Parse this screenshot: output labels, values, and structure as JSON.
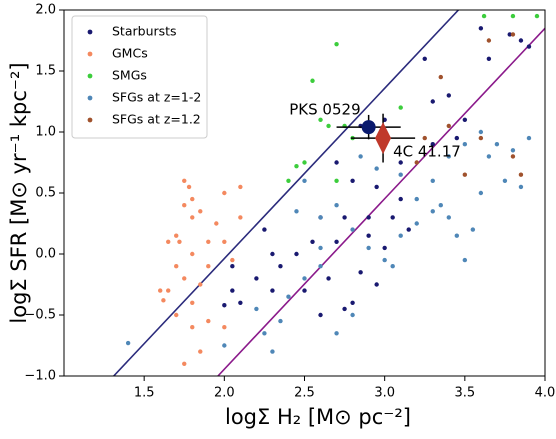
{
  "chart_data": {
    "type": "scatter",
    "xlabel": "logΣ H₂ [M⊙ pc⁻²]",
    "ylabel": "logΣ SFR [M⊙ yr⁻¹ kpc⁻²]",
    "xlim": [
      1.0,
      4.0
    ],
    "ylim": [
      -1.0,
      2.0
    ],
    "xticks": [
      {
        "value": 1.5,
        "label": "1.5"
      },
      {
        "value": 2.0,
        "label": "2.0"
      },
      {
        "value": 2.5,
        "label": "2.5"
      },
      {
        "value": 3.0,
        "label": "3.0"
      },
      {
        "value": 3.5,
        "label": "3.5"
      },
      {
        "value": 4.0,
        "label": "4.0"
      }
    ],
    "yticks": [
      {
        "value": -1.0,
        "label": "−1.0"
      },
      {
        "value": -0.5,
        "label": "−0.5"
      },
      {
        "value": 0.0,
        "label": "0.0"
      },
      {
        "value": 0.5,
        "label": "0.5"
      },
      {
        "value": 1.0,
        "label": "1.0"
      },
      {
        "value": 1.5,
        "label": "1.5"
      },
      {
        "value": 2.0,
        "label": "2.0"
      }
    ],
    "legend": "upper left",
    "series": [
      {
        "name": "Starbursts",
        "color": "#191970",
        "x": [
          3.6,
          3.85,
          3.78,
          3.9,
          3.65,
          3.4,
          3.25,
          3.3,
          3.0,
          2.85,
          3.5,
          3.45,
          3.3,
          3.1,
          2.6,
          2.75,
          2.9,
          3.05,
          3.15,
          2.9,
          2.7,
          2.55,
          2.45,
          2.35,
          2.2,
          2.05,
          2.1,
          2.3,
          2.5,
          2.6,
          2.75,
          2.8,
          2.95,
          2.85,
          3.0,
          2.05,
          2.25,
          2.3,
          2.65,
          3.1,
          2.7,
          2.8,
          2.0,
          2.95
        ],
        "values": [
          1.85,
          1.75,
          1.8,
          1.7,
          1.6,
          1.3,
          1.6,
          1.25,
          1.1,
          1.05,
          1.1,
          0.95,
          0.9,
          0.75,
          0.3,
          0.3,
          0.3,
          0.3,
          0.2,
          0.15,
          0.1,
          0.1,
          0.0,
          -0.1,
          -0.2,
          -0.3,
          -0.4,
          -0.3,
          -0.3,
          -0.5,
          -0.45,
          -0.4,
          -0.25,
          -0.15,
          0.05,
          -0.1,
          0.2,
          0.0,
          -0.2,
          0.45,
          0.75,
          0.6,
          -0.42,
          0.55
        ]
      },
      {
        "name": "GMCs",
        "color": "#f4895f",
        "x": [
          1.75,
          1.78,
          1.8,
          1.75,
          1.8,
          1.85,
          1.65,
          1.72,
          1.7,
          1.9,
          1.8,
          1.7,
          1.65,
          1.62,
          1.6,
          1.75,
          1.85,
          1.9,
          2.0,
          2.1,
          2.0,
          2.1,
          1.7,
          1.8,
          1.9,
          1.85,
          1.75,
          2.05,
          1.95,
          2.0,
          1.8
        ],
        "values": [
          0.6,
          0.55,
          0.45,
          0.4,
          0.3,
          0.35,
          0.1,
          0.1,
          0.15,
          0.1,
          0.0,
          -0.1,
          -0.3,
          -0.38,
          -0.3,
          -0.2,
          -0.25,
          -0.1,
          0.1,
          0.55,
          0.5,
          0.3,
          -0.5,
          -0.6,
          -0.55,
          -0.8,
          -0.9,
          -0.05,
          0.25,
          -0.6,
          -0.4
        ]
      },
      {
        "name": "SMGs",
        "color": "#3ccd3c",
        "x": [
          3.8,
          3.95,
          3.62,
          2.7,
          2.55,
          2.65,
          2.6,
          2.5,
          2.45,
          2.4,
          2.7,
          2.8,
          3.1,
          2.75
        ],
        "values": [
          1.95,
          1.95,
          1.95,
          1.72,
          1.42,
          1.05,
          1.1,
          0.75,
          0.72,
          0.6,
          0.6,
          0.95,
          1.2,
          1.05
        ]
      },
      {
        "name": "SFGs at z=1-2",
        "color": "#4f87b7",
        "x": [
          1.4,
          2.0,
          2.25,
          2.3,
          2.4,
          2.45,
          2.6,
          2.6,
          2.8,
          2.9,
          3.0,
          3.1,
          3.2,
          3.3,
          3.35,
          3.4,
          3.45,
          3.5,
          3.55,
          3.6,
          3.65,
          3.7,
          3.75,
          3.8,
          3.85,
          3.9,
          3.6,
          3.5,
          3.3,
          3.2,
          3.1,
          2.95,
          2.85,
          2.7,
          2.6,
          2.5,
          2.8,
          2.7,
          2.35,
          2.2,
          3.05,
          2.5,
          3.4
        ],
        "values": [
          -0.73,
          -0.75,
          -0.65,
          -0.8,
          -0.35,
          0.35,
          0.3,
          -0.1,
          0.2,
          0.05,
          -0.05,
          0.15,
          0.25,
          0.35,
          0.4,
          0.3,
          0.15,
          -0.05,
          0.2,
          0.5,
          0.8,
          0.9,
          0.6,
          0.85,
          0.55,
          0.95,
          1.0,
          0.9,
          0.6,
          0.45,
          0.65,
          0.7,
          0.8,
          0.4,
          0.05,
          -0.2,
          -0.5,
          -0.65,
          -0.55,
          -0.45,
          -0.1,
          0.6,
          0.8
        ]
      },
      {
        "name": "SFGs at z=1.2",
        "color": "#a0522d",
        "x": [
          3.8,
          3.65,
          3.35,
          3.4,
          3.6,
          3.8,
          3.85,
          3.5,
          3.25,
          3.2
        ],
        "values": [
          1.8,
          1.75,
          1.45,
          1.05,
          0.95,
          0.8,
          0.65,
          0.65,
          0.95,
          0.75
        ]
      }
    ],
    "lines": [
      {
        "color": "#2b2b7c",
        "x": [
          1.31,
          3.46
        ],
        "values": [
          -1.0,
          2.0
        ]
      },
      {
        "color": "#8b1a8b",
        "x": [
          1.96,
          4.0
        ],
        "values": [
          -1.0,
          1.85
        ]
      }
    ],
    "points": [
      {
        "label": "PKS 0529",
        "color": "#0a1a6e",
        "marker": "circle",
        "x": 2.9,
        "y": 1.04,
        "xerr": 0.2,
        "yerr": 0.1
      },
      {
        "label": "4C 41.17",
        "color": "#c0392b",
        "marker": "diamond",
        "x": 2.99,
        "y": 0.95,
        "xerr": 0.2,
        "yerr": 0.2
      }
    ]
  }
}
